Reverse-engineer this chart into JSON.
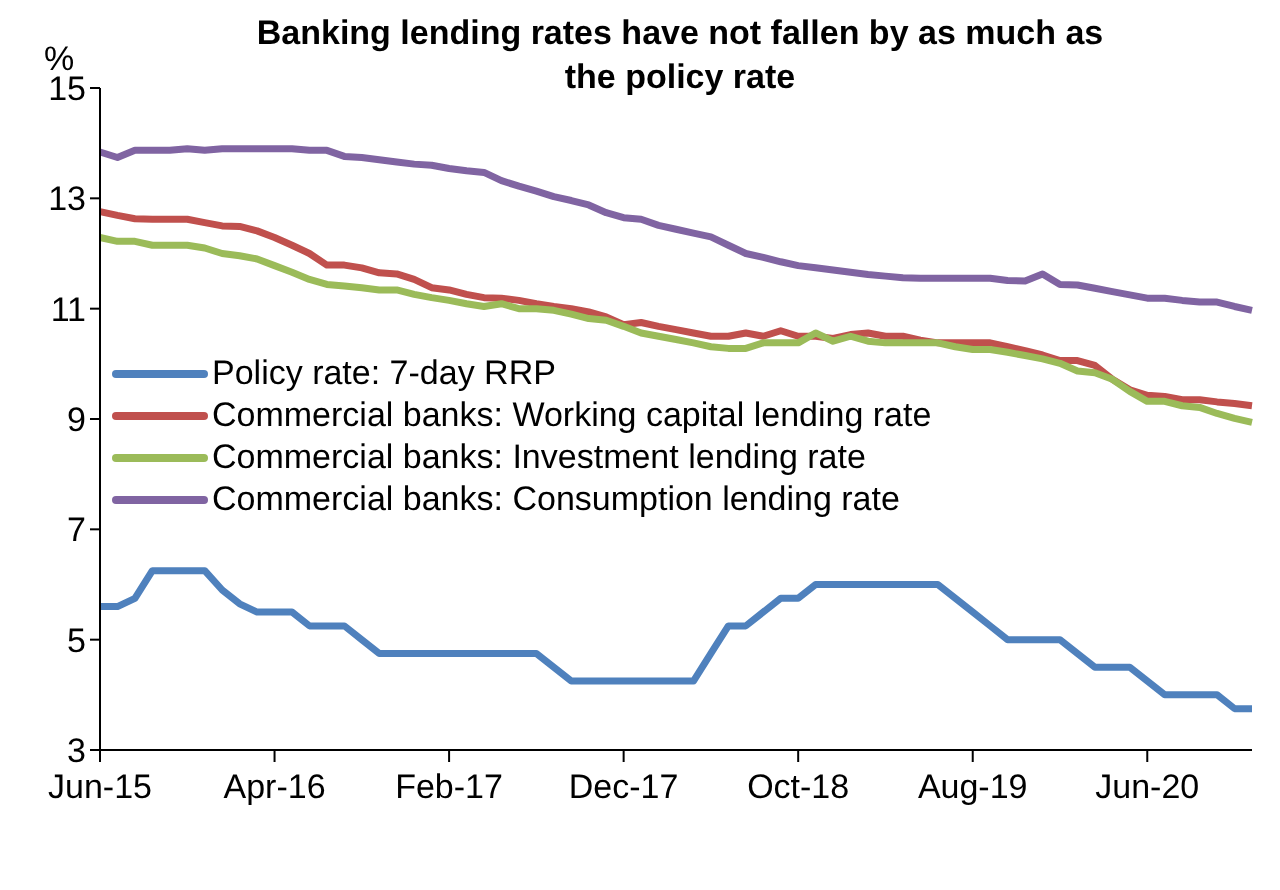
{
  "chart_data": {
    "type": "line",
    "title": "Banking lending rates have not fallen by as much as the policy rate",
    "ylabel": "%",
    "categories": [
      "Jun-15",
      null,
      null,
      null,
      null,
      null,
      null,
      null,
      null,
      null,
      "Apr-16",
      null,
      null,
      null,
      null,
      null,
      null,
      null,
      null,
      null,
      "Feb-17",
      null,
      null,
      null,
      null,
      null,
      null,
      null,
      null,
      null,
      "Dec-17",
      null,
      null,
      null,
      null,
      null,
      null,
      null,
      null,
      null,
      "Oct-18",
      null,
      null,
      null,
      null,
      null,
      null,
      null,
      null,
      null,
      "Aug-19",
      null,
      null,
      null,
      null,
      null,
      null,
      null,
      null,
      null,
      "Jun-20",
      null,
      null,
      null,
      null,
      null,
      null
    ],
    "series": [
      {
        "name": "Policy rate: 7-day RRP",
        "color": "#4f81bd",
        "values": [
          5.6,
          5.6,
          5.75,
          6.25,
          6.25,
          6.25,
          6.25,
          5.9,
          5.65,
          5.5,
          5.5,
          5.5,
          5.25,
          5.25,
          5.25,
          5.0,
          4.75,
          4.75,
          4.75,
          4.75,
          4.75,
          4.75,
          4.75,
          4.75,
          4.75,
          4.75,
          4.5,
          4.25,
          4.25,
          4.25,
          4.25,
          4.25,
          4.25,
          4.25,
          4.25,
          4.75,
          5.25,
          5.25,
          5.5,
          5.75,
          5.75,
          6.0,
          6.0,
          6.0,
          6.0,
          6.0,
          6.0,
          6.0,
          6.0,
          5.75,
          5.5,
          5.25,
          5.0,
          5.0,
          5.0,
          5.0,
          4.75,
          4.5,
          4.5,
          4.5,
          4.25,
          4.0,
          4.0,
          4.0,
          4.0,
          3.75,
          3.75
        ]
      },
      {
        "name": "Commercial banks: Working capital lending rate",
        "color": "#c0504d",
        "values": [
          12.76,
          12.69,
          12.63,
          12.62,
          12.62,
          12.62,
          12.56,
          12.5,
          12.49,
          12.41,
          12.29,
          12.15,
          12.0,
          11.79,
          11.79,
          11.74,
          11.65,
          11.63,
          11.53,
          11.38,
          11.34,
          11.26,
          11.2,
          11.19,
          11.15,
          11.09,
          11.04,
          11.0,
          10.94,
          10.85,
          10.71,
          10.75,
          10.68,
          10.62,
          10.56,
          10.5,
          10.5,
          10.56,
          10.5,
          10.6,
          10.5,
          10.5,
          10.46,
          10.53,
          10.56,
          10.5,
          10.5,
          10.43,
          10.38,
          10.38,
          10.38,
          10.38,
          10.31,
          10.24,
          10.16,
          10.06,
          10.06,
          9.97,
          9.72,
          9.53,
          9.43,
          9.41,
          9.35,
          9.35,
          9.31,
          9.28,
          9.24
        ]
      },
      {
        "name": "Commercial banks: Investment lending rate",
        "color": "#9bbb59",
        "values": [
          12.29,
          12.22,
          12.22,
          12.15,
          12.15,
          12.15,
          12.1,
          12.0,
          11.96,
          11.9,
          11.78,
          11.66,
          11.53,
          11.44,
          11.41,
          11.38,
          11.34,
          11.34,
          11.26,
          11.2,
          11.15,
          11.09,
          11.04,
          11.09,
          11.0,
          11.0,
          10.97,
          10.9,
          10.82,
          10.79,
          10.68,
          10.56,
          10.5,
          10.44,
          10.38,
          10.31,
          10.28,
          10.28,
          10.38,
          10.38,
          10.38,
          10.56,
          10.41,
          10.5,
          10.41,
          10.38,
          10.38,
          10.38,
          10.38,
          10.31,
          10.26,
          10.26,
          10.21,
          10.15,
          10.09,
          10.01,
          9.87,
          9.84,
          9.72,
          9.5,
          9.32,
          9.32,
          9.24,
          9.21,
          9.1,
          9.01,
          8.94
        ]
      },
      {
        "name": "Commercial banks: Consumption lending rate",
        "color": "#8064a2",
        "values": [
          13.84,
          13.74,
          13.87,
          13.87,
          13.87,
          13.9,
          13.87,
          13.9,
          13.9,
          13.9,
          13.9,
          13.9,
          13.87,
          13.87,
          13.76,
          13.74,
          13.7,
          13.66,
          13.62,
          13.6,
          13.54,
          13.5,
          13.47,
          13.32,
          13.22,
          13.13,
          13.03,
          12.96,
          12.88,
          12.74,
          12.65,
          12.62,
          12.51,
          12.44,
          12.37,
          12.3,
          12.15,
          12.0,
          11.93,
          11.85,
          11.78,
          11.74,
          11.7,
          11.66,
          11.62,
          11.59,
          11.56,
          11.55,
          11.55,
          11.55,
          11.55,
          11.55,
          11.51,
          11.5,
          11.63,
          11.44,
          11.43,
          11.37,
          11.31,
          11.25,
          11.19,
          11.19,
          11.15,
          11.12,
          11.12,
          11.04,
          10.97
        ]
      }
    ],
    "ylim": [
      3,
      15
    ],
    "yticks": [
      3,
      5,
      7,
      9,
      11,
      13,
      15
    ],
    "grid": false,
    "legend": "left",
    "marker": "none",
    "line_style": "solid"
  }
}
